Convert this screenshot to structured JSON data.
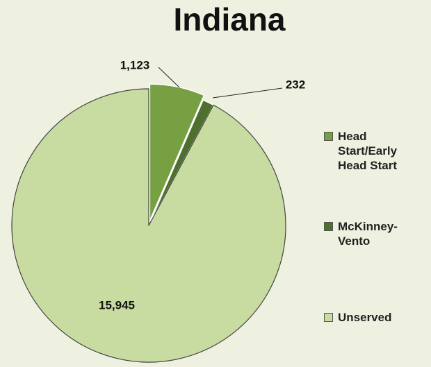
{
  "chart_data": {
    "type": "pie",
    "title": "Indiana",
    "categories": [
      "Head Start/Early Head Start",
      "McKinney-Vento",
      "Unserved"
    ],
    "values": [
      1123,
      232,
      15945
    ],
    "value_labels": [
      "1,123",
      "232",
      "15,945"
    ],
    "colors": [
      "#77a043",
      "#4e6f2e",
      "#c8dba0"
    ]
  }
}
